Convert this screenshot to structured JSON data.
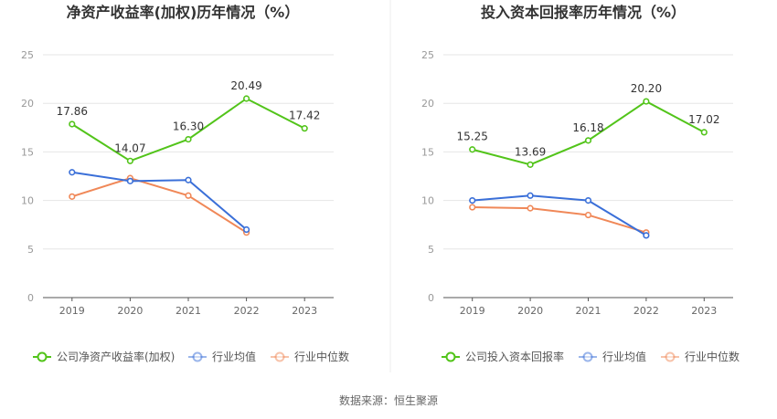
{
  "footer": {
    "source": "数据来源：恒生聚源"
  },
  "colors": {
    "company": "#52c41a",
    "avg": "#3a6fd8",
    "median": "#f08858",
    "grid": "#e6e6e6",
    "axis": "#555555",
    "tick": "#999999",
    "title": "#333333"
  },
  "chart_data": [
    {
      "type": "line",
      "title": "净资产收益率(加权)历年情况（%）",
      "categories": [
        "2019",
        "2020",
        "2021",
        "2022",
        "2023"
      ],
      "ylim": [
        0,
        25
      ],
      "yticks": [
        "0",
        "5",
        "10",
        "15",
        "20",
        "25"
      ],
      "grid": true,
      "legend": "bottom-left",
      "series": [
        {
          "name": "公司净资产收益率(加权)",
          "color": "#52c41a",
          "values": [
            17.86,
            14.07,
            16.3,
            20.49,
            17.42
          ],
          "labels": [
            "17.86",
            "14.07",
            "16.30",
            "20.49",
            "17.42"
          ]
        },
        {
          "name": "行业均值",
          "color": "#3a6fd8",
          "values": [
            12.9,
            12.0,
            12.1,
            7.0,
            null
          ],
          "labels": []
        },
        {
          "name": "行业中位数",
          "color": "#f08858",
          "values": [
            10.4,
            12.3,
            10.5,
            6.7,
            null
          ],
          "labels": []
        }
      ]
    },
    {
      "type": "line",
      "title": "投入资本回报率历年情况（%）",
      "categories": [
        "2019",
        "2020",
        "2021",
        "2022",
        "2023"
      ],
      "ylim": [
        0,
        25
      ],
      "yticks": [
        "0",
        "5",
        "10",
        "15",
        "20",
        "25"
      ],
      "grid": true,
      "legend": "bottom-left",
      "series": [
        {
          "name": "公司投入资本回报率",
          "color": "#52c41a",
          "values": [
            15.25,
            13.69,
            16.18,
            20.2,
            17.02
          ],
          "labels": [
            "15.25",
            "13.69",
            "16.18",
            "20.20",
            "17.02"
          ]
        },
        {
          "name": "行业均值",
          "color": "#3a6fd8",
          "values": [
            10.0,
            10.5,
            10.0,
            6.4,
            null
          ],
          "labels": []
        },
        {
          "name": "行业中位数",
          "color": "#f08858",
          "values": [
            9.3,
            9.2,
            8.5,
            6.7,
            null
          ],
          "labels": []
        }
      ]
    }
  ]
}
